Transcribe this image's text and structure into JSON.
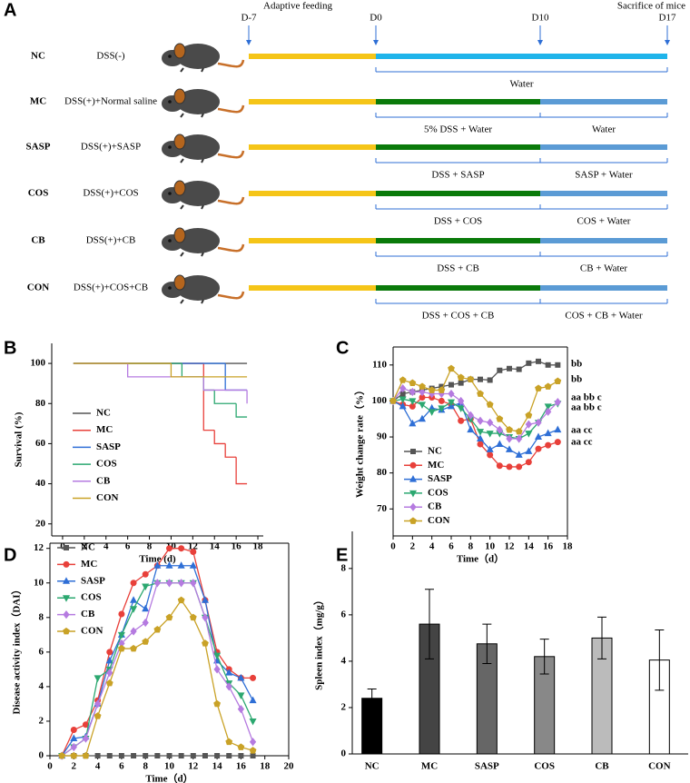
{
  "diagram": {
    "panel": "A",
    "phase_labels": [
      "Adaptive feeding",
      "Sacrifice of mice"
    ],
    "days": [
      "D-7",
      "D0",
      "D10",
      "D17"
    ],
    "groups": [
      {
        "code": "NC",
        "treatment": "DSS(-)",
        "periods": [
          "Water"
        ]
      },
      {
        "code": "MC",
        "treatment": "DSS(+)+Normal saline",
        "periods": [
          "5% DSS + Water",
          "Water"
        ]
      },
      {
        "code": "SASP",
        "treatment": "DSS(+)+SASP",
        "periods": [
          "DSS + SASP",
          "SASP + Water"
        ]
      },
      {
        "code": "COS",
        "treatment": "DSS(+)+COS",
        "periods": [
          "DSS + COS",
          "COS + Water"
        ]
      },
      {
        "code": "CB",
        "treatment": "DSS(+)+CB",
        "periods": [
          "DSS + CB",
          "CB + Water"
        ]
      },
      {
        "code": "CON",
        "treatment": "DSS(+)+COS+CB",
        "periods": [
          "DSS + COS + CB",
          "COS + CB + Water"
        ]
      }
    ]
  },
  "chart_data": [
    {
      "panel": "B",
      "type": "line",
      "step": true,
      "xlabel": "Time (d)",
      "ylabel": "Survival (%)",
      "xlim": [
        -1,
        18.5
      ],
      "ylim": [
        14,
        110
      ],
      "xticks": [
        0,
        2,
        4,
        6,
        8,
        10,
        12,
        14,
        16,
        18
      ],
      "yticks": [
        20,
        40,
        60,
        80,
        100
      ],
      "series": [
        {
          "name": "NC",
          "color": "#555555",
          "x": [
            1,
            17
          ],
          "values": [
            100,
            100
          ]
        },
        {
          "name": "MC",
          "color": "#e8403a",
          "x": [
            1,
            13,
            14,
            15,
            16,
            17
          ],
          "values": [
            100,
            66.7,
            60,
            53.3,
            40,
            40
          ]
        },
        {
          "name": "SASP",
          "color": "#2f6fd6",
          "x": [
            1,
            15,
            17
          ],
          "values": [
            100,
            86.7,
            86.7
          ]
        },
        {
          "name": "COS",
          "color": "#2ca870",
          "x": [
            1,
            11,
            13,
            14,
            16,
            17
          ],
          "values": [
            100,
            93.3,
            86.7,
            80,
            73.3,
            73.3
          ]
        },
        {
          "name": "CB",
          "color": "#b57be0",
          "x": [
            1,
            6,
            13,
            17
          ],
          "values": [
            100,
            93.3,
            86.7,
            80
          ]
        },
        {
          "name": "CON",
          "color": "#c9a227",
          "x": [
            1,
            10,
            17
          ],
          "values": [
            100,
            93.3,
            93.3
          ]
        }
      ]
    },
    {
      "panel": "C",
      "type": "line",
      "xlabel": "Time（d）",
      "ylabel": "Weight change rate（%）",
      "xlim": [
        0,
        18
      ],
      "ylim": [
        62.5,
        115
      ],
      "xticks": [
        0,
        2,
        4,
        6,
        8,
        10,
        12,
        14,
        16,
        18
      ],
      "yticks": [
        70,
        80,
        90,
        100,
        110
      ],
      "annotations": [
        "bb",
        "bb",
        "aa bb c",
        "aa bb c",
        "aa cc",
        "aa cc"
      ],
      "series": [
        {
          "name": "NC",
          "color": "#555555",
          "marker": "square",
          "x": [
            0,
            1,
            2,
            3,
            4,
            5,
            6,
            7,
            8,
            9,
            10,
            11,
            12,
            13,
            14,
            15,
            16,
            17
          ],
          "values": [
            100,
            102,
            102.5,
            103,
            103.5,
            104,
            104.5,
            105,
            106,
            106,
            105.8,
            108.5,
            109,
            108.8,
            110.5,
            111,
            110,
            110
          ]
        },
        {
          "name": "MC",
          "color": "#e8403a",
          "marker": "circle",
          "x": [
            0,
            1,
            2,
            3,
            4,
            5,
            6,
            7,
            8,
            9,
            10,
            11,
            12,
            13,
            14,
            15,
            16,
            17
          ],
          "values": [
            100,
            99,
            98.5,
            101,
            101,
            100,
            99,
            94.5,
            95,
            88,
            85,
            82,
            81.7,
            81.7,
            83,
            86.7,
            87.7,
            88.6
          ]
        },
        {
          "name": "SASP",
          "color": "#2f6fd6",
          "marker": "triangle",
          "x": [
            0,
            1,
            2,
            3,
            4,
            5,
            6,
            7,
            8,
            9,
            10,
            11,
            12,
            13,
            14,
            15,
            16,
            17
          ],
          "values": [
            100,
            98.5,
            93.7,
            95,
            98,
            97.5,
            98.5,
            99.5,
            92,
            89.5,
            86.5,
            88,
            86.5,
            85,
            86,
            90,
            91,
            92
          ]
        },
        {
          "name": "COS",
          "color": "#2ca870",
          "marker": "triangle-down",
          "x": [
            0,
            1,
            2,
            3,
            4,
            5,
            6,
            7,
            8,
            9,
            10,
            11,
            12,
            13,
            14,
            15,
            16,
            17
          ],
          "values": [
            100,
            100.5,
            100,
            99,
            97,
            98,
            99.7,
            98,
            95,
            91.5,
            91,
            91,
            90,
            89.5,
            91,
            94,
            98.5,
            99.3
          ]
        },
        {
          "name": "CB",
          "color": "#b57be0",
          "marker": "diamond",
          "x": [
            0,
            1,
            2,
            3,
            4,
            5,
            6,
            7,
            8,
            9,
            10,
            11,
            12,
            13,
            14,
            15,
            16,
            17
          ],
          "values": [
            100,
            103.5,
            102.5,
            102.5,
            102,
            102,
            102,
            100,
            96,
            94.5,
            94,
            92,
            89.5,
            89.5,
            93.5,
            94,
            97,
            99.7
          ]
        },
        {
          "name": "CON",
          "color": "#c9a227",
          "marker": "pentagon",
          "x": [
            0,
            1,
            2,
            3,
            4,
            5,
            6,
            7,
            8,
            9,
            10,
            11,
            12,
            13,
            14,
            15,
            16,
            17
          ],
          "values": [
            100,
            105.8,
            105,
            104,
            103,
            103,
            109,
            106.5,
            106,
            102,
            99,
            95,
            92,
            91.5,
            96,
            103.5,
            104,
            105.5
          ]
        }
      ]
    },
    {
      "panel": "D",
      "type": "line",
      "xlabel": "Time（d）",
      "ylabel": "Disease activity index（DAI）",
      "xlim": [
        0,
        20
      ],
      "ylim": [
        0,
        12.3
      ],
      "xticks": [
        0,
        2,
        4,
        6,
        8,
        10,
        12,
        14,
        16,
        18,
        20
      ],
      "yticks": [
        0,
        2,
        4,
        6,
        8,
        10,
        12
      ],
      "series": [
        {
          "name": "NC",
          "color": "#555555",
          "marker": "square",
          "x": [
            1,
            2,
            3,
            4,
            5,
            6,
            7,
            8,
            9,
            10,
            11,
            12,
            13,
            14,
            15,
            16,
            17
          ],
          "values": [
            0,
            0,
            0,
            0,
            0,
            0,
            0,
            0,
            0,
            0,
            0,
            0,
            0,
            0,
            0,
            0,
            0
          ]
        },
        {
          "name": "MC",
          "color": "#e8403a",
          "marker": "circle",
          "x": [
            1,
            2,
            3,
            4,
            5,
            6,
            7,
            8,
            9,
            10,
            11,
            12,
            13,
            14,
            15,
            16,
            17
          ],
          "values": [
            0,
            1.5,
            1.8,
            3.2,
            6,
            8.2,
            10,
            10.5,
            11,
            12,
            12,
            11.8,
            9,
            6,
            5,
            4.5,
            4.5
          ]
        },
        {
          "name": "SASP",
          "color": "#2f6fd6",
          "marker": "triangle",
          "x": [
            1,
            2,
            3,
            4,
            5,
            6,
            7,
            8,
            9,
            10,
            11,
            12,
            13,
            14,
            15,
            16,
            17
          ],
          "values": [
            0,
            1,
            1.1,
            3,
            5.5,
            7,
            9,
            8.5,
            11,
            11,
            11,
            11,
            9,
            5.5,
            4.8,
            4.5,
            3.2
          ]
        },
        {
          "name": "COS",
          "color": "#2ca870",
          "marker": "triangle-down",
          "x": [
            1,
            2,
            3,
            4,
            5,
            6,
            7,
            8,
            9,
            10,
            11,
            12,
            13,
            14,
            15,
            16,
            17
          ],
          "values": [
            0,
            0.5,
            1,
            4.5,
            5,
            7,
            8.5,
            9.8,
            10,
            10,
            10,
            10,
            8,
            5.8,
            4.2,
            3.5,
            2
          ]
        },
        {
          "name": "CB",
          "color": "#b57be0",
          "marker": "diamond",
          "x": [
            1,
            2,
            3,
            4,
            5,
            6,
            7,
            8,
            9,
            10,
            11,
            12,
            13,
            14,
            15,
            16,
            17
          ],
          "values": [
            0,
            0.5,
            1,
            3,
            4.8,
            6.5,
            7.2,
            7.7,
            10,
            10,
            10,
            10,
            8,
            5,
            4,
            2.7,
            0.8
          ]
        },
        {
          "name": "CON",
          "color": "#c9a227",
          "marker": "pentagon",
          "x": [
            1,
            2,
            3,
            4,
            5,
            6,
            7,
            8,
            9,
            10,
            11,
            12,
            13,
            14,
            15,
            16,
            17
          ],
          "values": [
            0,
            0,
            0,
            2.3,
            4.2,
            6.2,
            6.2,
            6.6,
            7.3,
            8,
            9,
            8,
            6.5,
            3,
            0.8,
            0.5,
            0.3
          ]
        }
      ]
    },
    {
      "panel": "E",
      "type": "bar",
      "ylabel": "Spleen index（mg/g）",
      "ylim": [
        0,
        9.6
      ],
      "yticks": [
        0,
        2,
        4,
        6,
        8
      ],
      "categories": [
        "NC",
        "MC",
        "SASP",
        "COS",
        "CB",
        "CON"
      ],
      "values": [
        2.4,
        5.6,
        4.75,
        4.2,
        5.0,
        4.05
      ],
      "errors": [
        0.4,
        1.5,
        0.85,
        0.75,
        0.9,
        1.3
      ],
      "colors": [
        "#000000",
        "#444444",
        "#666666",
        "#888888",
        "#bbbbbb",
        "#ffffff"
      ]
    }
  ]
}
